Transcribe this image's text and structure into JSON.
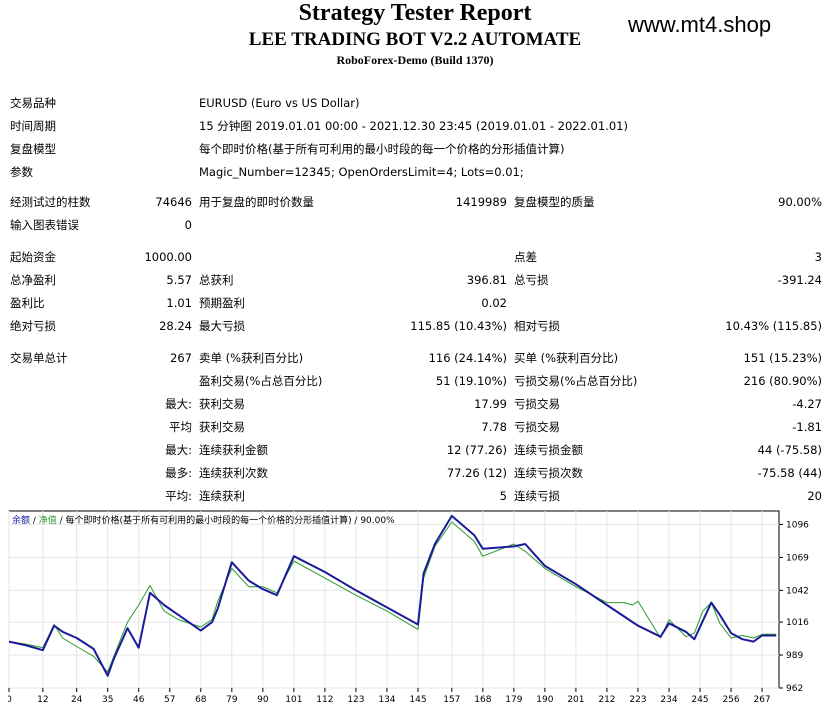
{
  "header": {
    "title": "Strategy Tester Report",
    "ea_name": "LEE TRADING BOT V2.2 AUTOMATE",
    "server": "RoboForex-Demo (Build 1370)",
    "watermark": "www.mt4.shop"
  },
  "info": {
    "symbol_label": "交易品种",
    "symbol": "EURUSD (Euro vs US Dollar)",
    "period_label": "时间周期",
    "period": "15 分钟图 2019.01.01 00:00 - 2021.12.30 23:45 (2019.01.01 - 2022.01.01)",
    "model_label": "复盘模型",
    "model": "每个即时价格(基于所有可利用的最小时段的每一个价格的分形插值计算)",
    "params_label": "参数",
    "params": "Magic_Number=12345; OpenOrdersLimit=4; Lots=0.01;"
  },
  "stats": {
    "bars_label": "经测试过的柱数",
    "bars": "74646",
    "ticks_label": "用于复盘的即时价数量",
    "ticks": "1419989",
    "quality_label": "复盘模型的质量",
    "quality": "90.00%",
    "errors_label": "输入图表错误",
    "errors": "0",
    "deposit_label": "起始资金",
    "deposit": "1000.00",
    "spread_label": "点差",
    "spread": "3",
    "net_label": "总净盈利",
    "net": "5.57",
    "gross_profit_label": "总获利",
    "gross_profit": "396.81",
    "gross_loss_label": "总亏损",
    "gross_loss": "-391.24",
    "pf_label": "盈利比",
    "pf": "1.01",
    "expected_label": "预期盈利",
    "expected": "0.02",
    "abs_dd_label": "绝对亏损",
    "abs_dd": "28.24",
    "max_dd_label": "最大亏损",
    "max_dd": "115.85 (10.43%)",
    "rel_dd_label": "相对亏损",
    "rel_dd": "10.43% (115.85)",
    "trades_label": "交易单总计",
    "trades": "267",
    "short_label": "卖单 (%获利百分比)",
    "short": "116 (24.14%)",
    "long_label": "买单 (%获利百分比)",
    "long": "151 (15.23%)",
    "win_label": "盈利交易(%占总百分比)",
    "win": "51 (19.10%)",
    "loss_label": "亏损交易(%占总百分比)",
    "loss": "216 (80.90%)",
    "largest_label": "最大:",
    "largest_win_label": "获利交易",
    "largest_win": "17.99",
    "largest_loss_label": "亏损交易",
    "largest_loss": "-4.27",
    "avg_label": "平均",
    "avg_win_label": "获利交易",
    "avg_win": "7.78",
    "avg_loss_label": "亏损交易",
    "avg_loss": "-1.81",
    "max_label": "最大:",
    "max_cw_label": "连续获利金额",
    "max_cw": "12 (77.26)",
    "max_cl_label": "连续亏损金额",
    "max_cl": "44 (-75.58)",
    "most_label": "最多:",
    "most_cw_label": "连续获利次数",
    "most_cw": "77.26 (12)",
    "most_cl_label": "连续亏损次数",
    "most_cl": "-75.58 (44)",
    "avgc_label": "平均:",
    "avgc_w_label": "连续获利",
    "avgc_w": "5",
    "avgc_l_label": "连续亏损",
    "avgc_l": "20"
  },
  "chart_legend": {
    "balance": "余额",
    "sep1": " / ",
    "equity": "净值",
    "rest": " / 每个即时价格(基于所有可利用的最小时段的每一个价格的分形插值计算) / 90.00%"
  },
  "chart_data": {
    "type": "line",
    "x_ticks": [
      0,
      12,
      24,
      35,
      46,
      57,
      68,
      79,
      90,
      101,
      112,
      123,
      134,
      145,
      157,
      168,
      179,
      190,
      201,
      212,
      223,
      234,
      245,
      256,
      267
    ],
    "y_ticks": [
      962,
      989,
      1016,
      1042,
      1069,
      1096
    ],
    "ylim": [
      962,
      1107
    ],
    "xlim": [
      0,
      273
    ],
    "series": [
      {
        "name": "余额",
        "color": "#1a1a9a",
        "points": [
          [
            0,
            1000
          ],
          [
            6,
            997
          ],
          [
            12,
            993
          ],
          [
            16,
            1013
          ],
          [
            19,
            1008
          ],
          [
            24,
            1003
          ],
          [
            30,
            994
          ],
          [
            35,
            972
          ],
          [
            37,
            985
          ],
          [
            42,
            1011
          ],
          [
            46,
            995
          ],
          [
            50,
            1040
          ],
          [
            55,
            1030
          ],
          [
            60,
            1022
          ],
          [
            68,
            1009
          ],
          [
            72,
            1016
          ],
          [
            74,
            1027
          ],
          [
            79,
            1065
          ],
          [
            85,
            1050
          ],
          [
            90,
            1043
          ],
          [
            95,
            1038
          ],
          [
            101,
            1070
          ],
          [
            112,
            1057
          ],
          [
            123,
            1042
          ],
          [
            134,
            1028
          ],
          [
            145,
            1014
          ],
          [
            147,
            1056
          ],
          [
            151,
            1080
          ],
          [
            157,
            1103
          ],
          [
            165,
            1087
          ],
          [
            168,
            1076
          ],
          [
            179,
            1078
          ],
          [
            183,
            1080
          ],
          [
            190,
            1062
          ],
          [
            201,
            1047
          ],
          [
            212,
            1030
          ],
          [
            223,
            1013
          ],
          [
            231,
            1004
          ],
          [
            234,
            1015
          ],
          [
            240,
            1008
          ],
          [
            243,
            1002
          ],
          [
            246,
            1017
          ],
          [
            249,
            1032
          ],
          [
            252,
            1022
          ],
          [
            256,
            1007
          ],
          [
            260,
            1002
          ],
          [
            264,
            1000
          ],
          [
            267,
            1005
          ],
          [
            272,
            1005
          ]
        ]
      },
      {
        "name": "净值",
        "color": "#2a9a2a",
        "points": [
          [
            0,
            1000
          ],
          [
            6,
            998
          ],
          [
            12,
            995
          ],
          [
            16,
            1014
          ],
          [
            19,
            1003
          ],
          [
            24,
            996
          ],
          [
            30,
            988
          ],
          [
            35,
            975
          ],
          [
            38,
            993
          ],
          [
            42,
            1016
          ],
          [
            46,
            1030
          ],
          [
            50,
            1046
          ],
          [
            55,
            1025
          ],
          [
            60,
            1018
          ],
          [
            68,
            1012
          ],
          [
            72,
            1018
          ],
          [
            74,
            1033
          ],
          [
            79,
            1060
          ],
          [
            85,
            1045
          ],
          [
            90,
            1045
          ],
          [
            95,
            1040
          ],
          [
            101,
            1066
          ],
          [
            112,
            1052
          ],
          [
            123,
            1038
          ],
          [
            134,
            1025
          ],
          [
            145,
            1010
          ],
          [
            147,
            1052
          ],
          [
            151,
            1078
          ],
          [
            157,
            1098
          ],
          [
            165,
            1082
          ],
          [
            168,
            1070
          ],
          [
            179,
            1080
          ],
          [
            183,
            1074
          ],
          [
            190,
            1060
          ],
          [
            201,
            1045
          ],
          [
            212,
            1032
          ],
          [
            218,
            1032
          ],
          [
            221,
            1030
          ],
          [
            223,
            1033
          ],
          [
            231,
            1003
          ],
          [
            234,
            1018
          ],
          [
            240,
            1004
          ],
          [
            243,
            1007
          ],
          [
            246,
            1025
          ],
          [
            249,
            1032
          ],
          [
            252,
            1015
          ],
          [
            256,
            1003
          ],
          [
            260,
            1005
          ],
          [
            264,
            1003
          ],
          [
            267,
            1006
          ],
          [
            272,
            1006
          ]
        ]
      }
    ]
  }
}
